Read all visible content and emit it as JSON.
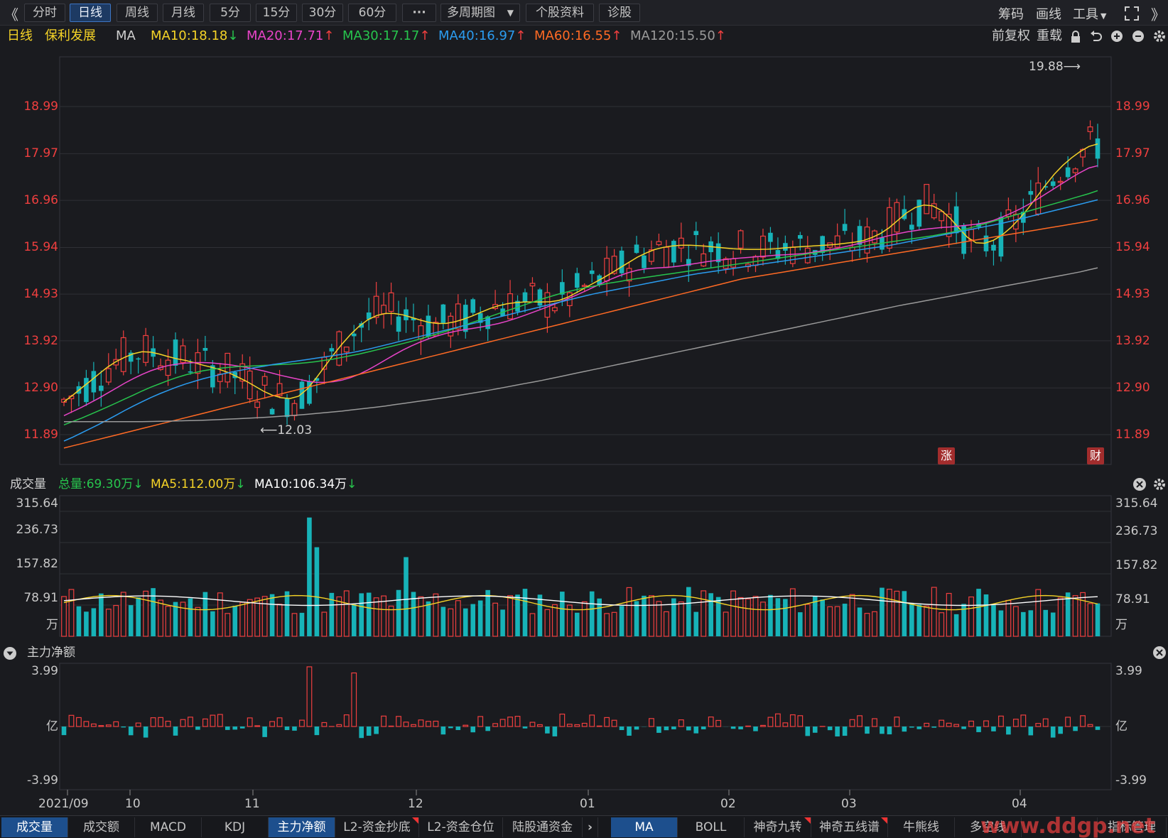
{
  "toolbar": {
    "back": "《",
    "forward": "》",
    "tabs": [
      "分时",
      "日线",
      "周线",
      "月线",
      "5分",
      "15分",
      "30分",
      "60分",
      "···",
      "多周期图",
      "个股资料",
      "诊股"
    ],
    "right": [
      "筹码",
      "画线",
      "工具"
    ]
  },
  "main_header": {
    "period": "日线",
    "stock": "保利发展",
    "ma_label": "MA",
    "ma": [
      {
        "text": "MA10:18.18",
        "dir": "↓",
        "color": "#f5d327"
      },
      {
        "text": "MA20:17.71",
        "dir": "↑",
        "color": "#e844c8"
      },
      {
        "text": "MA30:17.17",
        "dir": "↑",
        "color": "#27c44d"
      },
      {
        "text": "MA40:16.97",
        "dir": "↑",
        "color": "#2b9cf0"
      },
      {
        "text": "MA60:16.55",
        "dir": "↑",
        "color": "#ff6a24"
      },
      {
        "text": "MA120:15.50",
        "dir": "↑",
        "color": "#9a9a9a"
      }
    ],
    "fuquan": "前复权",
    "reload": "重载"
  },
  "main_axis": [
    "18.99",
    "17.97",
    "16.96",
    "15.94",
    "14.93",
    "13.92",
    "12.90",
    "11.89"
  ],
  "annotations": {
    "high": "19.88⟶",
    "low": "⟵12.03",
    "badge_zhang": "涨",
    "badge_cai": "财"
  },
  "volume_header": {
    "title": "成交量",
    "total": "总量:69.30万",
    "total_dir": "↓",
    "ma5": "MA5:112.00万",
    "ma5_dir": "↓",
    "ma10": "MA10:106.34万",
    "ma10_dir": "↓"
  },
  "volume_axis": [
    "315.64",
    "236.73",
    "157.82",
    "78.91",
    "万"
  ],
  "flow_header": {
    "title": "主力净额"
  },
  "flow_axis": [
    "3.99",
    "亿",
    "-3.99"
  ],
  "x_axis": [
    "2021/09",
    "10",
    "11",
    "12",
    "01",
    "02",
    "03",
    "04"
  ],
  "bottom_tabs_left": [
    "成交量",
    "成交额",
    "MACD",
    "KDJ",
    "主力净额",
    "L2-资金抄底",
    "L2-资金仓位",
    "陆股通资金"
  ],
  "bottom_tabs_right": [
    "MA",
    "BOLL",
    "神奇九转",
    "神奇五线谱",
    "牛熊线",
    "多空线",
    "指标管理"
  ],
  "watermark": "www.ddgp.net",
  "colors": {
    "up": "#ef3f3f",
    "down": "#17b3b8",
    "ma10": "#f5d327",
    "ma20": "#e844c8",
    "ma30": "#27c44d",
    "ma40": "#2b9cf0",
    "ma60": "#ff6a24",
    "ma120": "#9a9a9a"
  },
  "chart_data": [
    {
      "type": "candlestick",
      "title": "日线 保利发展",
      "ylim": [
        11.6,
        19.9
      ],
      "ticks": [
        18.99,
        17.97,
        16.96,
        15.94,
        14.93,
        13.92,
        12.9,
        11.89
      ],
      "series": [
        {
          "name": "MA10",
          "values": [
            12.6,
            12.72,
            12.86,
            12.98,
            13.12,
            13.25,
            13.38,
            13.48,
            13.56,
            13.63,
            13.68,
            13.69,
            13.66,
            13.62,
            13.57,
            13.53,
            13.5,
            13.46,
            13.41,
            13.37,
            13.33,
            13.28,
            13.22,
            13.14,
            13.06,
            12.97,
            12.87,
            12.78,
            12.72,
            12.68,
            12.67,
            12.71,
            12.83,
            13.02,
            13.24,
            13.46,
            13.68,
            13.88,
            14.06,
            14.22,
            14.35,
            14.44,
            14.5,
            14.52,
            14.51,
            14.48,
            14.43,
            14.38,
            14.33,
            14.3,
            14.29,
            14.3,
            14.34,
            14.39,
            14.45,
            14.52,
            14.59,
            14.65,
            14.7,
            14.73,
            14.75,
            14.76,
            14.76,
            14.76,
            14.76,
            14.77,
            14.81,
            14.88,
            14.97,
            15.06,
            15.15,
            15.24,
            15.33,
            15.43,
            15.53,
            15.63,
            15.73,
            15.81,
            15.88,
            15.93,
            15.96,
            15.98,
            15.99,
            15.99,
            15.98,
            15.97,
            15.95,
            15.94,
            15.92,
            15.91,
            15.9,
            15.9,
            15.9,
            15.9,
            15.91,
            15.92,
            15.94,
            15.95,
            15.96,
            15.97,
            15.98,
            15.99,
            16.0,
            16.02,
            16.04,
            16.06,
            16.09,
            16.15,
            16.22,
            16.32,
            16.45,
            16.6,
            16.73,
            16.82,
            16.86,
            16.85,
            16.78,
            16.65,
            16.48,
            16.28,
            16.12,
            16.03,
            16.03,
            16.08,
            16.17,
            16.29,
            16.45,
            16.63,
            16.83,
            17.05,
            17.27,
            17.48,
            17.66,
            17.81,
            17.94,
            18.05,
            18.14,
            18.18
          ]
        },
        {
          "name": "MA20",
          "values": [
            12.3,
            12.39,
            12.48,
            12.58,
            12.68,
            12.79,
            12.9,
            13.01,
            13.11,
            13.2,
            13.28,
            13.34,
            13.39,
            13.42,
            13.44,
            13.45,
            13.45,
            13.44,
            13.42,
            13.4,
            13.37,
            13.34,
            13.3,
            13.26,
            13.21,
            13.16,
            13.12,
            13.08,
            13.04,
            13.02,
            13.02,
            13.04,
            13.08,
            13.14,
            13.22,
            13.32,
            13.43,
            13.54,
            13.65,
            13.75,
            13.84,
            13.92,
            13.99,
            14.05,
            14.1,
            14.14,
            14.17,
            14.2,
            14.23,
            14.27,
            14.31,
            14.37,
            14.43,
            14.5,
            14.57,
            14.64,
            14.71,
            14.79,
            14.87,
            14.95,
            15.04,
            15.13,
            15.22,
            15.3,
            15.37,
            15.43,
            15.47,
            15.49,
            15.5,
            15.51,
            15.53,
            15.56,
            15.59,
            15.62,
            15.65,
            15.67,
            15.69,
            15.71,
            15.72,
            15.74,
            15.75,
            15.77,
            15.78,
            15.79,
            15.8,
            15.82,
            15.85,
            15.88,
            15.91,
            15.95,
            15.99,
            16.04,
            16.09,
            16.14,
            16.19,
            16.23,
            16.27,
            16.3,
            16.33,
            16.35,
            16.37,
            16.38,
            16.4,
            16.42,
            16.44,
            16.47,
            16.52,
            16.59,
            16.67,
            16.76,
            16.86,
            16.97,
            17.09,
            17.21,
            17.33,
            17.45,
            17.56,
            17.66,
            17.71
          ]
        },
        {
          "name": "MA30",
          "values": [
            12.1,
            12.18,
            12.26,
            12.35,
            12.44,
            12.53,
            12.63,
            12.72,
            12.82,
            12.91,
            12.99,
            13.07,
            13.14,
            13.2,
            13.25,
            13.29,
            13.32,
            13.34,
            13.36,
            13.37,
            13.38,
            13.39,
            13.4,
            13.41,
            13.42,
            13.44,
            13.46,
            13.49,
            13.52,
            13.56,
            13.6,
            13.64,
            13.69,
            13.74,
            13.79,
            13.84,
            13.89,
            13.95,
            14.01,
            14.07,
            14.13,
            14.2,
            14.27,
            14.34,
            14.41,
            14.48,
            14.55,
            14.62,
            14.69,
            14.76,
            14.83,
            14.89,
            14.95,
            15.0,
            15.05,
            15.09,
            15.13,
            15.17,
            15.2,
            15.24,
            15.27,
            15.3,
            15.33,
            15.36,
            15.39,
            15.42,
            15.45,
            15.48,
            15.51,
            15.54,
            15.57,
            15.6,
            15.63,
            15.66,
            15.69,
            15.72,
            15.75,
            15.78,
            15.81,
            15.84,
            15.87,
            15.9,
            15.93,
            15.96,
            15.99,
            16.02,
            16.05,
            16.08,
            16.11,
            16.14,
            16.17,
            16.2,
            16.24,
            16.28,
            16.33,
            16.38,
            16.44,
            16.5,
            16.56,
            16.62,
            16.68,
            16.74,
            16.8,
            16.86,
            16.92,
            16.98,
            17.04,
            17.1,
            17.17
          ]
        },
        {
          "name": "MA40",
          "values": [
            11.75,
            11.84,
            11.94,
            12.04,
            12.14,
            12.25,
            12.36,
            12.47,
            12.57,
            12.67,
            12.76,
            12.84,
            12.92,
            12.99,
            13.05,
            13.11,
            13.16,
            13.21,
            13.25,
            13.29,
            13.33,
            13.36,
            13.4,
            13.43,
            13.46,
            13.49,
            13.52,
            13.55,
            13.58,
            13.61,
            13.64,
            13.68,
            13.72,
            13.77,
            13.82,
            13.87,
            13.92,
            13.97,
            14.02,
            14.07,
            14.12,
            14.17,
            14.22,
            14.27,
            14.32,
            14.37,
            14.42,
            14.47,
            14.52,
            14.57,
            14.62,
            14.67,
            14.72,
            14.77,
            14.82,
            14.87,
            14.92,
            14.96,
            15.0,
            15.04,
            15.08,
            15.12,
            15.16,
            15.2,
            15.24,
            15.28,
            15.32,
            15.36,
            15.39,
            15.42,
            15.45,
            15.48,
            15.51,
            15.54,
            15.57,
            15.6,
            15.63,
            15.66,
            15.69,
            15.72,
            15.75,
            15.78,
            15.81,
            15.84,
            15.87,
            15.9,
            15.93,
            15.96,
            15.99,
            16.03,
            16.07,
            16.11,
            16.15,
            16.19,
            16.23,
            16.27,
            16.31,
            16.35,
            16.39,
            16.43,
            16.47,
            16.52,
            16.57,
            16.62,
            16.67,
            16.72,
            16.77,
            16.82,
            16.87,
            16.92,
            16.97
          ]
        },
        {
          "name": "MA60",
          "values": [
            11.6,
            11.66,
            11.72,
            11.78,
            11.84,
            11.9,
            11.96,
            12.02,
            12.08,
            12.14,
            12.2,
            12.26,
            12.32,
            12.38,
            12.44,
            12.5,
            12.56,
            12.62,
            12.68,
            12.74,
            12.8,
            12.86,
            12.92,
            12.98,
            13.04,
            13.1,
            13.16,
            13.22,
            13.28,
            13.34,
            13.4,
            13.46,
            13.52,
            13.58,
            13.64,
            13.7,
            13.76,
            13.82,
            13.88,
            13.94,
            14.0,
            14.06,
            14.12,
            14.18,
            14.24,
            14.3,
            14.36,
            14.42,
            14.48,
            14.54,
            14.6,
            14.66,
            14.72,
            14.78,
            14.84,
            14.9,
            14.96,
            15.02,
            15.08,
            15.14,
            15.2,
            15.26,
            15.3,
            15.34,
            15.38,
            15.42,
            15.46,
            15.5,
            15.54,
            15.58,
            15.62,
            15.66,
            15.7,
            15.74,
            15.78,
            15.82,
            15.86,
            15.9,
            15.94,
            15.98,
            16.02,
            16.06,
            16.1,
            16.14,
            16.18,
            16.22,
            16.26,
            16.3,
            16.34,
            16.38,
            16.42,
            16.46,
            16.5,
            16.55
          ]
        },
        {
          "name": "MA120",
          "values": [
            12.17,
            12.17,
            12.17,
            12.17,
            12.17,
            12.18,
            12.19,
            12.2,
            12.22,
            12.24,
            12.26,
            12.29,
            12.32,
            12.36,
            12.4,
            12.45,
            12.5,
            12.56,
            12.62,
            12.68,
            12.75,
            12.82,
            12.9,
            12.98,
            13.06,
            13.15,
            13.24,
            13.33,
            13.42,
            13.51,
            13.6,
            13.69,
            13.78,
            13.87,
            13.96,
            14.05,
            14.14,
            14.23,
            14.32,
            14.41,
            14.5,
            14.59,
            14.68,
            14.76,
            14.84,
            14.92,
            15.0,
            15.08,
            15.16,
            15.24,
            15.32,
            15.4,
            15.5
          ]
        }
      ],
      "candle_count": 140,
      "high": 19.88,
      "low": 12.03
    },
    {
      "type": "bar",
      "title": "成交量",
      "unit": "万",
      "ylim": [
        0,
        315.64
      ],
      "ticks": [
        315.64,
        236.73,
        157.82,
        78.91
      ],
      "series": [
        {
          "name": "总量",
          "last": 69.3
        },
        {
          "name": "MA5",
          "last": 112.0
        },
        {
          "name": "MA10",
          "last": 106.34
        }
      ]
    },
    {
      "type": "bar",
      "title": "主力净额",
      "unit": "亿",
      "ylim": [
        -3.99,
        3.99
      ],
      "ticks": [
        3.99,
        -3.99
      ]
    }
  ]
}
